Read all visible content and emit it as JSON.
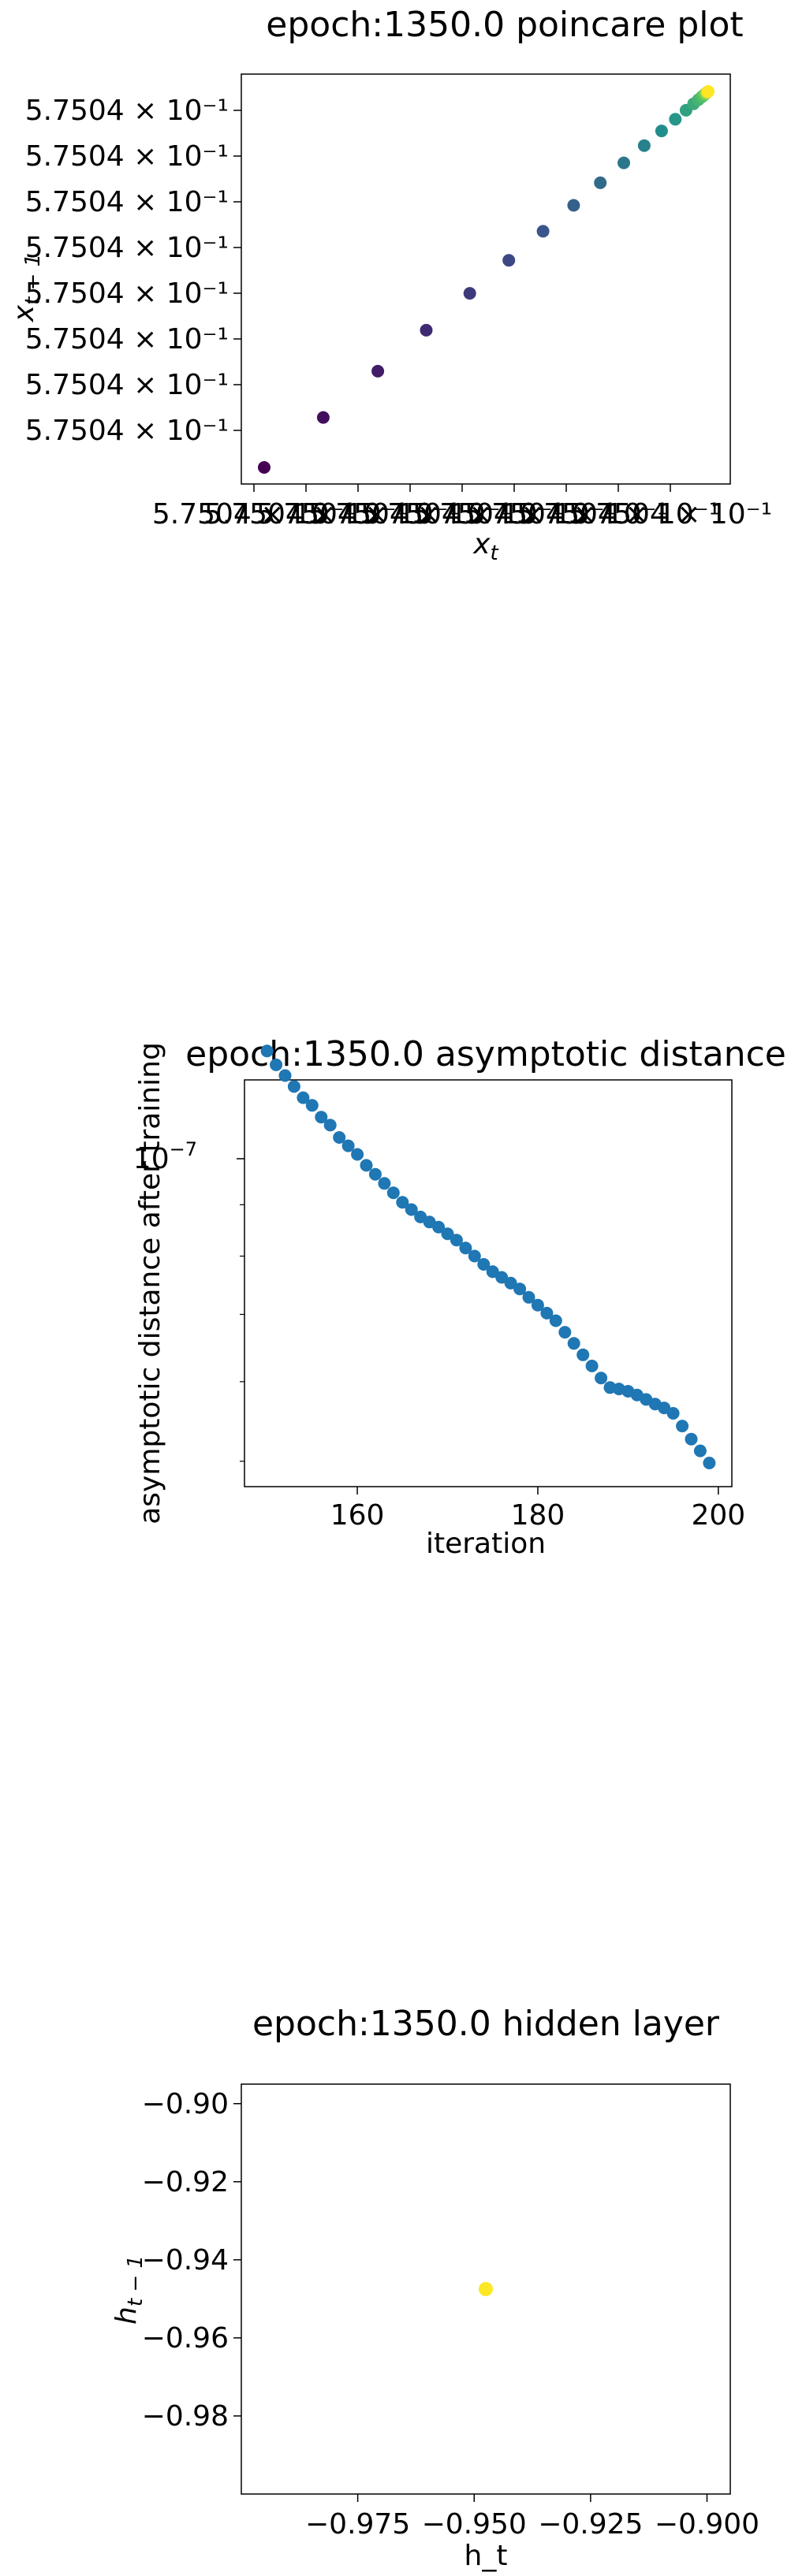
{
  "chart_data": [
    {
      "type": "scatter",
      "title": "epoch:1350.0 poincare plot",
      "xlabel": "x_t",
      "ylabel": "x_{t-1}",
      "colormap": "viridis",
      "ytick_labels": [
        "5.7504 × 10⁻¹",
        "5.7504 × 10⁻¹",
        "5.7504 × 10⁻¹",
        "5.7504 × 10⁻¹",
        "5.7504 × 10⁻¹",
        "5.7504 × 10⁻¹",
        "5.7504 × 10⁻¹",
        "5.7504 × 10⁻¹"
      ],
      "xtick_labels": [
        "5.7504 × 10⁻¹",
        "5.7504 × 10⁻¹",
        "5.7504 × 10⁻¹",
        "5.7504 × 10⁻¹",
        "5.7504 × 10⁻¹",
        "5.7504 × 10⁻¹",
        "5.7504 × 10⁻¹",
        "5.7504 × 10⁻¹",
        "5.7504 × 10⁻¹"
      ],
      "points_normalized_t": [
        0.0,
        0.133,
        0.256,
        0.365,
        0.463,
        0.551,
        0.628,
        0.697,
        0.757,
        0.81,
        0.856,
        0.895,
        0.926,
        0.95,
        0.967,
        0.978,
        0.986,
        0.991,
        0.994,
        0.996,
        0.997,
        0.998,
        0.999,
        1.0
      ],
      "grid": false
    },
    {
      "type": "scatter",
      "title": "epoch:1350.0 asymptotic distance",
      "xlabel": "iteration",
      "ylabel": "asymptotic distance after training",
      "yscale": "log",
      "xlim": [
        147.5,
        201.5
      ],
      "x_ticks": [
        160,
        180,
        200
      ],
      "y_tick_label": "10⁻⁷",
      "color": "#1f77b4",
      "x": [
        150,
        151,
        152,
        153,
        154,
        155,
        156,
        157,
        158,
        159,
        160,
        161,
        162,
        163,
        164,
        165,
        166,
        167,
        168,
        169,
        170,
        171,
        172,
        173,
        174,
        175,
        176,
        177,
        178,
        179,
        180,
        181,
        182,
        183,
        184,
        185,
        186,
        187,
        188,
        189,
        190,
        191,
        192,
        193,
        194,
        195,
        196,
        197,
        198,
        199
      ],
      "y": [
        1.28e-07,
        1.24e-07,
        1.21e-07,
        1.18e-07,
        1.15e-07,
        1.13e-07,
        1.1e-07,
        1.08e-07,
        1.05e-07,
        1.03e-07,
        1.01e-07,
        9.85e-08,
        9.65e-08,
        9.45e-08,
        9.25e-08,
        9.05e-08,
        8.9e-08,
        8.75e-08,
        8.65e-08,
        8.55e-08,
        8.42e-08,
        8.3e-08,
        8.15e-08,
        8e-08,
        7.85e-08,
        7.72e-08,
        7.62e-08,
        7.52e-08,
        7.42e-08,
        7.28e-08,
        7.15e-08,
        7.02e-08,
        6.9e-08,
        6.72e-08,
        6.55e-08,
        6.38e-08,
        6.22e-08,
        6.05e-08,
        5.92e-08,
        5.9e-08,
        5.87e-08,
        5.82e-08,
        5.76e-08,
        5.7e-08,
        5.65e-08,
        5.58e-08,
        5.42e-08,
        5.26e-08,
        5.12e-08,
        4.98e-08
      ],
      "grid": false
    },
    {
      "type": "scatter",
      "title": "epoch:1350.0 hidden layer",
      "xlabel": "h_t",
      "ylabel": "h_{t-1}",
      "xlim": [
        -1.0,
        -0.895
      ],
      "ylim": [
        -1.0,
        -0.895
      ],
      "x_ticks": [
        -0.975,
        -0.95,
        -0.925,
        -0.9
      ],
      "y_ticks": [
        -0.98,
        -0.96,
        -0.94,
        -0.92,
        -0.9
      ],
      "x_tick_labels": [
        "−0.975",
        "−0.950",
        "−0.925",
        "−0.900"
      ],
      "y_tick_labels": [
        "−0.98",
        "−0.96",
        "−0.94",
        "−0.92",
        "−0.90"
      ],
      "x": [
        -0.9475
      ],
      "y": [
        -0.9475
      ],
      "color": "#fde725",
      "grid": false
    }
  ]
}
